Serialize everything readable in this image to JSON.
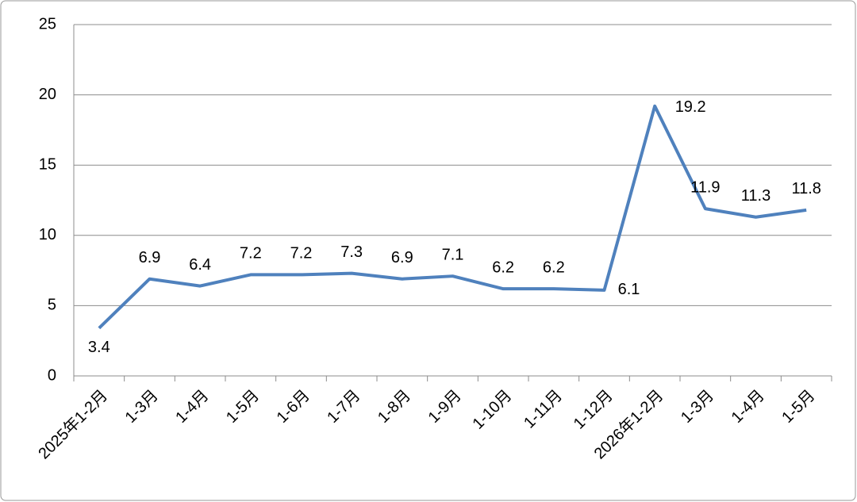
{
  "chart_data": {
    "type": "line",
    "categories": [
      "2025年1-2月",
      "1-3月",
      "1-4月",
      "1-5月",
      "1-6月",
      "1-7月",
      "1-8月",
      "1-9月",
      "1-10月",
      "1-11月",
      "1-12月",
      "2026年1-2月",
      "1-3月",
      "1-4月",
      "1-5月"
    ],
    "series": [
      {
        "name": null,
        "color": "#4f81bd",
        "values": [
          3.4,
          6.9,
          6.4,
          7.2,
          7.2,
          7.3,
          6.9,
          7.1,
          6.2,
          6.2,
          6.1,
          19.2,
          11.9,
          11.3,
          11.8
        ]
      }
    ],
    "ylim": [
      0,
      25
    ],
    "yticks": [
      0,
      5,
      10,
      15,
      20,
      25
    ],
    "grid": true
  }
}
